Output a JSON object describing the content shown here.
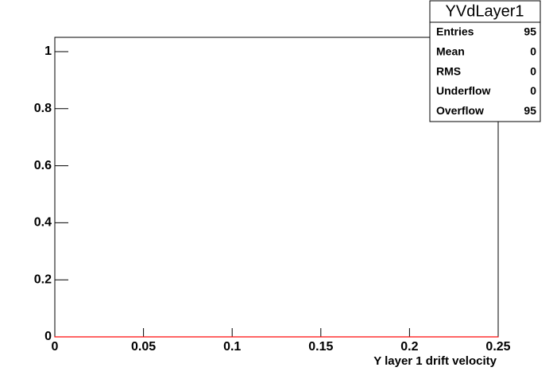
{
  "chart_data": {
    "type": "histogram",
    "bins": [
      0,
      0.25
    ],
    "counts": [
      0
    ],
    "color": "#ff0000",
    "xlim": [
      0,
      0.25
    ],
    "xticks": [
      0,
      0.05,
      0.1,
      0.15,
      0.2,
      0.25
    ],
    "ylim": [
      0,
      1.05
    ],
    "yticks": [
      0,
      0.2,
      0.4,
      0.6,
      0.8,
      1
    ],
    "x_label": "Y layer 1 drift velocity",
    "stats": {
      "title": "YVdLayer1",
      "rows": [
        {
          "label": "Entries",
          "value": 95
        },
        {
          "label": "Mean",
          "value": 0
        },
        {
          "label": "RMS",
          "value": 0
        },
        {
          "label": "Underflow",
          "value": 0
        },
        {
          "label": "Overflow",
          "value": 95
        }
      ]
    }
  }
}
